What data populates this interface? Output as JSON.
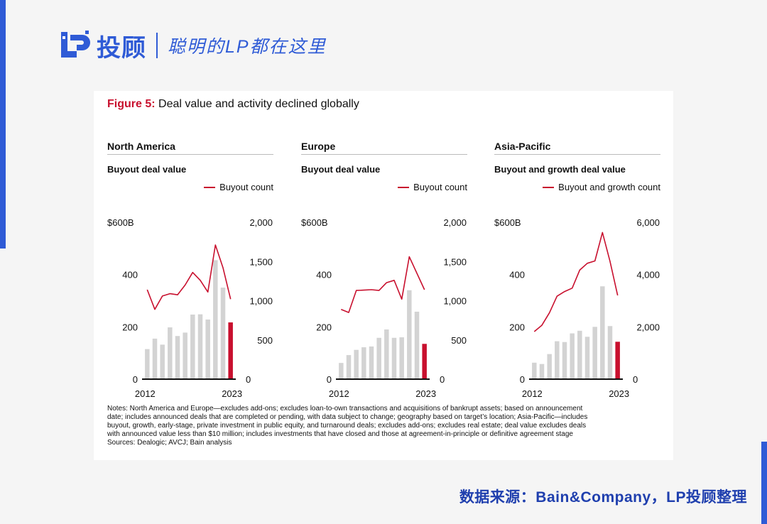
{
  "brand": {
    "name": "投顾",
    "slogan": "聪明的LP都在这里"
  },
  "figure": {
    "label": "Figure 5:",
    "title": "Deal value and activity declined globally"
  },
  "notes": [
    "Notes: North America and Europe—excludes add-ons; excludes loan-to-own transactions and acquisitions of bankrupt assets; based on announcement",
    "date; includes announced deals that are completed or pending, with data subject to change; geography based on target’s location; Asia-Pacific—includes",
    "buyout, growth, early-stage, private investment in public equity, and turnaround deals; excludes add-ons; excludes real estate; deal value excludes deals",
    "with announced value less than $10 million; includes investments that have closed and those at agreement-in-principle or definitive agreement stage",
    "Sources: Dealogic; AVCJ; Bain analysis"
  ],
  "source_line": "数据来源：Bain&Company，LP投顾整理",
  "colors": {
    "accent": "#2f5bd6",
    "highlight": "#c8102e",
    "bar": "#d3d3d3",
    "bar_latest": "#c8102e",
    "line": "#c8102e"
  },
  "chart_data": [
    {
      "type": "bar",
      "region": "North America",
      "subtitle": "Buyout deal value",
      "legend": "Buyout count",
      "x": [
        2012,
        2013,
        2014,
        2015,
        2016,
        2017,
        2018,
        2019,
        2020,
        2021,
        2022,
        2023
      ],
      "x_tick_labels": [
        "2012",
        "2023"
      ],
      "left_axis": {
        "ticks": [
          "0",
          "200",
          "400",
          "$600B"
        ],
        "ylim": [
          0,
          600
        ]
      },
      "right_axis": {
        "ticks": [
          "0",
          "500",
          "1,000",
          "1,500",
          "2,000"
        ],
        "ylim": [
          0,
          2000
        ]
      },
      "series": [
        {
          "kind": "bar",
          "values": [
            115,
            155,
            132,
            198,
            165,
            178,
            247,
            248,
            228,
            455,
            350,
            217
          ]
        },
        {
          "kind": "line",
          "axis": "right",
          "values": [
            1140,
            890,
            1060,
            1090,
            1075,
            1200,
            1360,
            1260,
            1110,
            1710,
            1420,
            1020
          ]
        }
      ]
    },
    {
      "type": "bar",
      "region": "Europe",
      "subtitle": "Buyout deal value",
      "legend": "Buyout count",
      "x": [
        2012,
        2013,
        2014,
        2015,
        2016,
        2017,
        2018,
        2019,
        2020,
        2021,
        2022,
        2023
      ],
      "x_tick_labels": [
        "2012",
        "2023"
      ],
      "left_axis": {
        "ticks": [
          "0",
          "200",
          "400",
          "$600B"
        ],
        "ylim": [
          0,
          600
        ]
      },
      "right_axis": {
        "ticks": [
          "0",
          "500",
          "1,000",
          "1,500",
          "2,000"
        ],
        "ylim": [
          0,
          2000
        ]
      },
      "series": [
        {
          "kind": "bar",
          "values": [
            62,
            92,
            112,
            122,
            125,
            158,
            190,
            158,
            160,
            340,
            258,
            135
          ]
        },
        {
          "kind": "line",
          "axis": "right",
          "values": [
            890,
            850,
            1130,
            1135,
            1140,
            1130,
            1230,
            1260,
            1020,
            1560,
            1350,
            1140
          ]
        }
      ]
    },
    {
      "type": "bar",
      "region": "Asia-Pacific",
      "subtitle": "Buyout and growth deal value",
      "legend": "Buyout and growth count",
      "x": [
        2012,
        2013,
        2014,
        2015,
        2016,
        2017,
        2018,
        2019,
        2020,
        2021,
        2022,
        2023
      ],
      "x_tick_labels": [
        "2012",
        "2023"
      ],
      "left_axis": {
        "ticks": [
          "0",
          "200",
          "400",
          "$600B"
        ],
        "ylim": [
          0,
          600
        ]
      },
      "right_axis": {
        "ticks": [
          "0",
          "2,000",
          "4,000",
          "6,000"
        ],
        "ylim": [
          0,
          6000
        ]
      },
      "series": [
        {
          "kind": "bar",
          "values": [
            63,
            58,
            96,
            145,
            142,
            175,
            185,
            162,
            200,
            355,
            203,
            143
          ]
        },
        {
          "kind": "line",
          "axis": "right",
          "values": [
            1820,
            2060,
            2540,
            3170,
            3350,
            3480,
            4170,
            4430,
            4520,
            5610,
            4500,
            3200
          ]
        }
      ]
    }
  ]
}
